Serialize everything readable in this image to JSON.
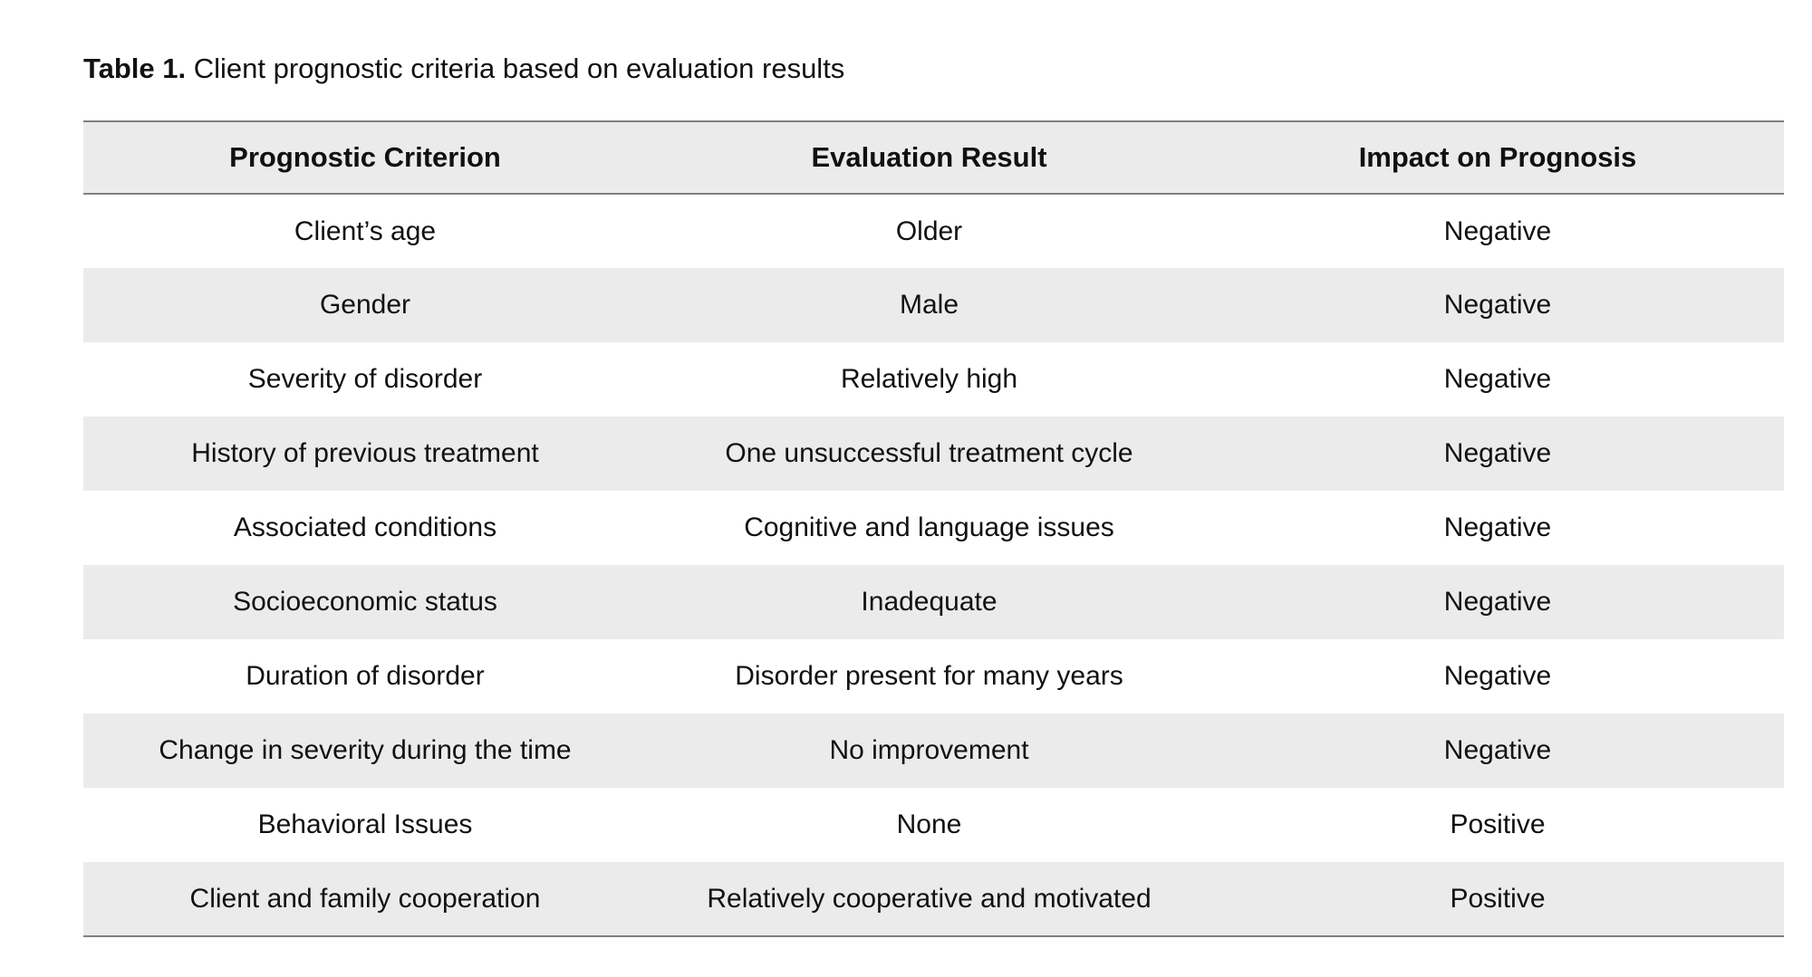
{
  "caption": {
    "label": "Table 1.",
    "text": " Client prognostic criteria based on evaluation results"
  },
  "table": {
    "headers": [
      "Prognostic Criterion",
      "Evaluation Result",
      "Impact on Prognosis"
    ],
    "rows": [
      [
        "Client’s age",
        "Older",
        "Negative"
      ],
      [
        "Gender",
        "Male",
        "Negative"
      ],
      [
        "Severity of disorder",
        "Relatively high",
        "Negative"
      ],
      [
        "History of previous treatment",
        "One unsuccessful treatment cycle",
        "Negative"
      ],
      [
        "Associated conditions",
        "Cognitive and language issues",
        "Negative"
      ],
      [
        "Socioeconomic status",
        "Inadequate",
        "Negative"
      ],
      [
        "Duration of disorder",
        "Disorder present for many years",
        "Negative"
      ],
      [
        "Change in severity during the time",
        "No improvement",
        "Negative"
      ],
      [
        "Behavioral Issues",
        "None",
        "Positive"
      ],
      [
        "Client and family cooperation",
        "Relatively cooperative and motivated",
        "Positive"
      ]
    ]
  },
  "colors": {
    "stripe": "#ebebeb",
    "rule": "#808080"
  }
}
